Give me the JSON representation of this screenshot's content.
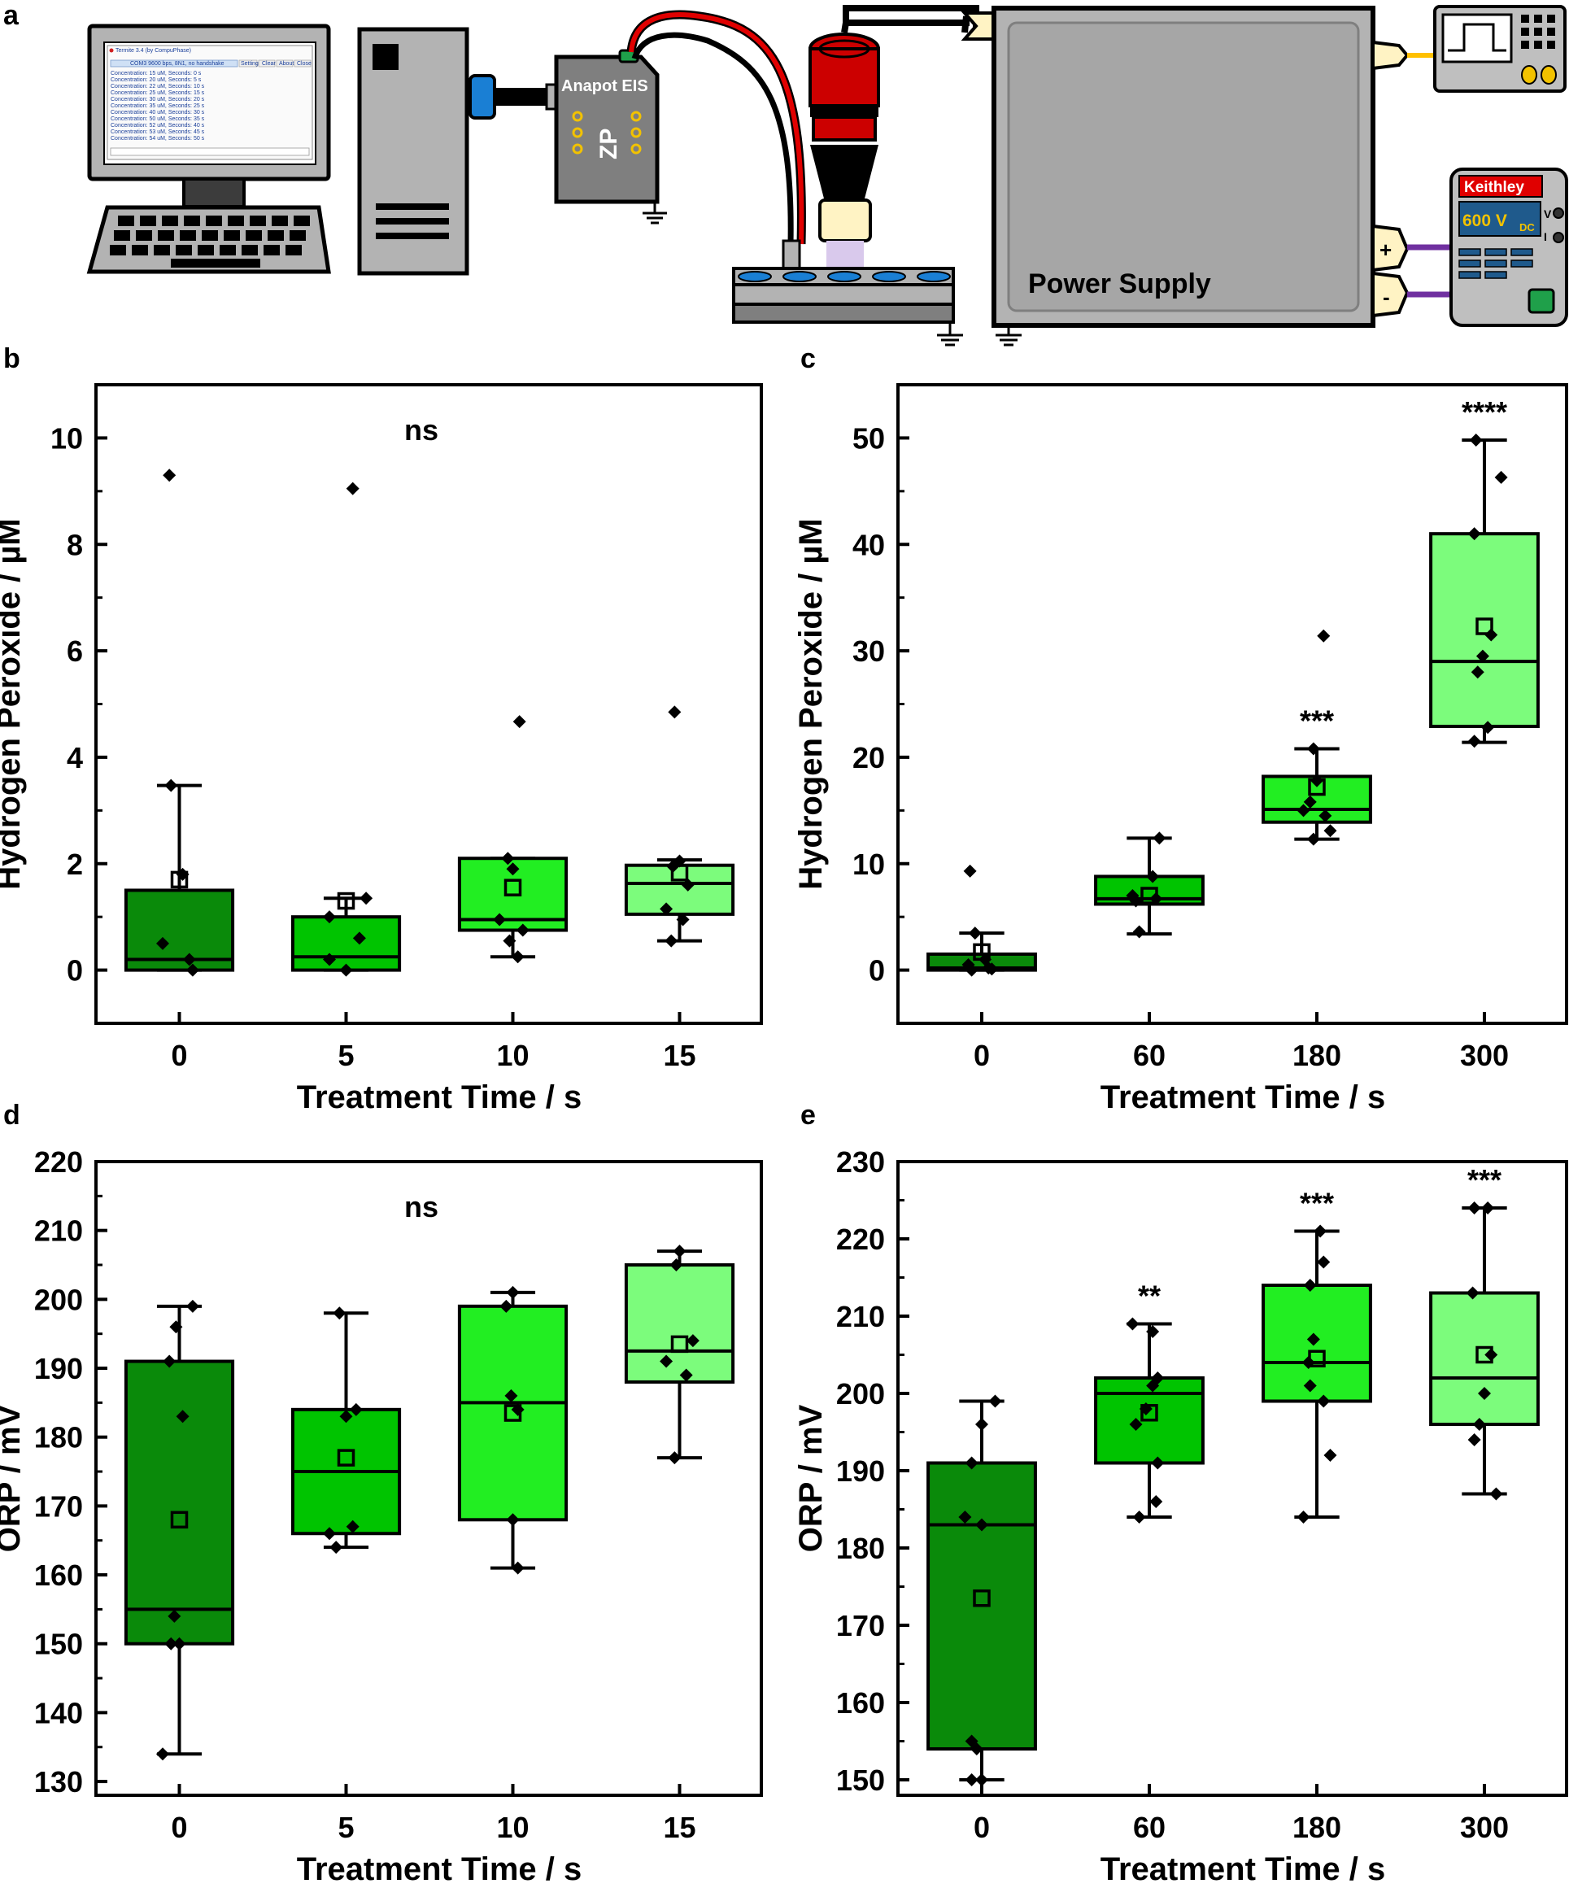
{
  "panel_labels": [
    "a",
    "b",
    "c",
    "d",
    "e"
  ],
  "schematic": {
    "software_window_title": "Termite 3.4 (by CompuPhase)",
    "software_status": "COM3 9600 bps, 8N1, no handshake",
    "software_buttons": [
      "Settings",
      "Clear",
      "About",
      "Close"
    ],
    "software_lines": [
      "Concentration: 15 uM, Seconds: 0 s",
      "Concentration: 20 uM, Seconds: 5 s",
      "Concentration: 22 uM, Seconds: 10 s",
      "Concentration: 25 uM, Seconds: 15 s",
      "Concentration: 30 uM, Seconds: 20 s",
      "Concentration: 35 uM, Seconds: 25 s",
      "Concentration: 40 uM, Seconds: 30 s",
      "Concentration: 50 uM, Seconds: 35 s",
      "Concentration: 52 uM, Seconds: 40 s",
      "Concentration: 53 uM, Seconds: 45 s",
      "Concentration: 54 uM, Seconds: 50 s"
    ],
    "potentiostat_label": "Anapot EIS",
    "potentiostat_logo": "ZP",
    "power_supply_label": "Power Supply",
    "meter_brand": "Keithley",
    "meter_reading": "600 V",
    "meter_reading_sub": "DC",
    "meter_v": "V",
    "meter_i": "I",
    "plus_sign": "+",
    "minus_sign": "-",
    "colors": {
      "case": "#b3b3b3",
      "cable_red": "#e00000",
      "cable_blue": "#1a7fd4",
      "meter_header": "#e00000",
      "meter_display": "#1f5a8c",
      "meter_text": "#f2c200",
      "wire_purple": "#7030a0",
      "wire_yellow": "#ffc000",
      "sample": "#d9c9ec"
    }
  },
  "chart_data": [
    {
      "panel": "b",
      "type": "box",
      "xlabel": "Treatment Time / s",
      "ylabel": "Hydrogen Peroxide / µM",
      "ylim": [
        -1,
        11
      ],
      "yticks": [
        0,
        2,
        4,
        6,
        8,
        10
      ],
      "xlim": [
        -0.5,
        3.5
      ],
      "categories": [
        "0",
        "5",
        "10",
        "15"
      ],
      "annotation": "ns",
      "boxes": [
        {
          "q1": 0.0,
          "median": 0.2,
          "q3": 1.5,
          "whisker_low": 0.0,
          "whisker_high": 3.47,
          "mean": 1.7,
          "color": "#0a8a0a",
          "points": [
            [
              0.08,
              0.0
            ],
            [
              -0.1,
              0.5
            ],
            [
              0.06,
              0.2
            ],
            [
              -0.05,
              3.47
            ],
            [
              -0.06,
              9.3
            ],
            [
              0.02,
              1.8
            ]
          ]
        },
        {
          "q1": 0.0,
          "median": 0.25,
          "q3": 1.0,
          "whisker_low": 0.0,
          "whisker_high": 1.35,
          "mean": 1.3,
          "color": "#00c400",
          "points": [
            [
              0.0,
              0.0
            ],
            [
              -0.1,
              0.2
            ],
            [
              0.08,
              0.6
            ],
            [
              -0.1,
              1.0
            ],
            [
              0.12,
              1.35
            ],
            [
              0.04,
              9.05
            ]
          ]
        },
        {
          "q1": 0.75,
          "median": 0.95,
          "q3": 2.1,
          "whisker_low": 0.25,
          "whisker_high": 2.1,
          "mean": 1.55,
          "color": "#22ee22",
          "points": [
            [
              -0.08,
              0.95
            ],
            [
              0.03,
              0.25
            ],
            [
              -0.02,
              0.55
            ],
            [
              0.06,
              0.75
            ],
            [
              0.0,
              1.9
            ],
            [
              -0.03,
              2.1
            ],
            [
              0.04,
              4.67
            ]
          ]
        },
        {
          "q1": 1.05,
          "median": 1.63,
          "q3": 1.97,
          "whisker_low": 0.55,
          "whisker_high": 2.07,
          "mean": 1.83,
          "color": "#7cfc7c",
          "points": [
            [
              -0.05,
              0.55
            ],
            [
              0.02,
              0.95
            ],
            [
              -0.08,
              1.15
            ],
            [
              0.05,
              1.6
            ],
            [
              -0.04,
              1.95
            ],
            [
              0.0,
              2.05
            ],
            [
              -0.03,
              4.85
            ]
          ]
        }
      ]
    },
    {
      "panel": "c",
      "type": "box",
      "xlabel": "Treatment Time / s",
      "ylabel": "Hydrogen Peroxide / µM",
      "ylim": [
        -5,
        55
      ],
      "yticks": [
        0,
        10,
        20,
        30,
        40,
        50
      ],
      "xlim": [
        -0.5,
        3.5
      ],
      "categories": [
        "0",
        "60",
        "180",
        "300"
      ],
      "annotations": [
        "",
        "",
        "***",
        "****"
      ],
      "boxes": [
        {
          "q1": 0.0,
          "median": 0.2,
          "q3": 1.5,
          "whisker_low": 0.0,
          "whisker_high": 3.47,
          "mean": 1.7,
          "color": "#0a8a0a",
          "points": [
            [
              -0.06,
              0.0
            ],
            [
              0.04,
              0.2
            ],
            [
              -0.08,
              0.5
            ],
            [
              0.02,
              1.0
            ],
            [
              -0.04,
              3.47
            ],
            [
              0.06,
              0.1
            ],
            [
              -0.07,
              9.3
            ]
          ]
        },
        {
          "q1": 6.2,
          "median": 6.7,
          "q3": 8.8,
          "whisker_low": 3.4,
          "whisker_high": 12.4,
          "mean": 7.0,
          "color": "#00c400",
          "points": [
            [
              -0.06,
              3.6
            ],
            [
              -0.08,
              6.5
            ],
            [
              0.04,
              6.7
            ],
            [
              0.02,
              8.8
            ],
            [
              0.06,
              12.4
            ],
            [
              -0.1,
              7.0
            ]
          ]
        },
        {
          "q1": 13.9,
          "median": 15.1,
          "q3": 18.2,
          "whisker_low": 12.3,
          "whisker_high": 20.8,
          "mean": 17.2,
          "color": "#22ee22",
          "points": [
            [
              -0.02,
              12.3
            ],
            [
              0.08,
              13.1
            ],
            [
              -0.08,
              15.0
            ],
            [
              0.05,
              14.5
            ],
            [
              -0.04,
              15.8
            ],
            [
              0.0,
              17.8
            ],
            [
              -0.02,
              20.8
            ],
            [
              0.04,
              31.4
            ]
          ]
        },
        {
          "q1": 22.9,
          "median": 29.0,
          "q3": 41.0,
          "whisker_low": 21.4,
          "whisker_high": 49.8,
          "mean": 32.3,
          "color": "#7cfc7c",
          "points": [
            [
              -0.06,
              21.5
            ],
            [
              0.02,
              22.8
            ],
            [
              -0.04,
              28.0
            ],
            [
              -0.01,
              29.5
            ],
            [
              0.04,
              31.5
            ],
            [
              -0.06,
              41.0
            ],
            [
              0.1,
              46.3
            ],
            [
              -0.05,
              49.8
            ]
          ]
        }
      ]
    },
    {
      "panel": "d",
      "type": "box",
      "xlabel": "Treatment Time / s",
      "ylabel": "ORP / mV",
      "ylim": [
        128,
        220
      ],
      "yticks": [
        130,
        140,
        150,
        160,
        170,
        180,
        190,
        200,
        210,
        220
      ],
      "xlim": [
        -0.5,
        3.5
      ],
      "categories": [
        "0",
        "5",
        "10",
        "15"
      ],
      "annotation": "ns",
      "boxes": [
        {
          "q1": 150,
          "median": 155,
          "q3": 191,
          "whisker_low": 134,
          "whisker_high": 199,
          "mean": 168,
          "color": "#0a8a0a",
          "points": [
            [
              -0.1,
              134
            ],
            [
              -0.05,
              150
            ],
            [
              0.0,
              150
            ],
            [
              -0.03,
              154
            ],
            [
              -0.06,
              191
            ],
            [
              0.02,
              183
            ],
            [
              -0.02,
              196
            ],
            [
              0.08,
              199
            ]
          ]
        },
        {
          "q1": 166,
          "median": 175,
          "q3": 184,
          "whisker_low": 164,
          "whisker_high": 198,
          "mean": 177,
          "color": "#00c400",
          "points": [
            [
              -0.06,
              164
            ],
            [
              -0.1,
              166
            ],
            [
              0.04,
              167
            ],
            [
              0.0,
              183
            ],
            [
              0.06,
              184
            ],
            [
              -0.04,
              198
            ]
          ]
        },
        {
          "q1": 168,
          "median": 185,
          "q3": 199,
          "whisker_low": 161,
          "whisker_high": 201,
          "mean": 183.5,
          "color": "#22ee22",
          "points": [
            [
              0.03,
              161
            ],
            [
              0.0,
              168
            ],
            [
              0.03,
              184
            ],
            [
              -0.01,
              186
            ],
            [
              -0.04,
              199
            ],
            [
              0.0,
              201
            ]
          ]
        },
        {
          "q1": 188,
          "median": 192.5,
          "q3": 205,
          "whisker_low": 177,
          "whisker_high": 207,
          "mean": 193.5,
          "color": "#7cfc7c",
          "points": [
            [
              -0.03,
              177
            ],
            [
              0.04,
              189
            ],
            [
              -0.08,
              191
            ],
            [
              0.08,
              194
            ],
            [
              -0.02,
              205
            ],
            [
              0.0,
              207
            ]
          ]
        }
      ]
    },
    {
      "panel": "e",
      "type": "box",
      "xlabel": "Treatment Time / s",
      "ylabel": "ORP / mV",
      "ylim": [
        148,
        230
      ],
      "yticks": [
        150,
        160,
        170,
        180,
        190,
        200,
        210,
        220,
        230
      ],
      "xlim": [
        -0.5,
        3.5
      ],
      "categories": [
        "0",
        "60",
        "180",
        "300"
      ],
      "annotations": [
        "",
        "**",
        "***",
        "***"
      ],
      "boxes": [
        {
          "q1": 154,
          "median": 183,
          "q3": 191,
          "whisker_low": 150,
          "whisker_high": 199,
          "mean": 173.5,
          "color": "#0a8a0a",
          "points": [
            [
              -0.06,
              150
            ],
            [
              0.0,
              150
            ],
            [
              -0.06,
              155
            ],
            [
              -0.03,
              154
            ],
            [
              0.0,
              183
            ],
            [
              -0.1,
              184
            ],
            [
              -0.06,
              191
            ],
            [
              0.0,
              196
            ],
            [
              0.08,
              199
            ]
          ]
        },
        {
          "q1": 191,
          "median": 200,
          "q3": 202,
          "whisker_low": 184,
          "whisker_high": 209,
          "mean": 197.5,
          "color": "#00c400",
          "points": [
            [
              -0.06,
              184
            ],
            [
              0.04,
              186
            ],
            [
              0.05,
              191
            ],
            [
              -0.08,
              196
            ],
            [
              -0.02,
              198
            ],
            [
              0.02,
              201
            ],
            [
              0.05,
              202
            ],
            [
              -0.1,
              209
            ],
            [
              0.02,
              208
            ]
          ]
        },
        {
          "q1": 199,
          "median": 204,
          "q3": 214,
          "whisker_low": 184,
          "whisker_high": 221,
          "mean": 204.5,
          "color": "#22ee22",
          "points": [
            [
              -0.08,
              184
            ],
            [
              0.08,
              192
            ],
            [
              0.04,
              199
            ],
            [
              -0.04,
              201
            ],
            [
              -0.05,
              204
            ],
            [
              -0.02,
              207
            ],
            [
              -0.04,
              214
            ],
            [
              0.04,
              217
            ],
            [
              0.02,
              221
            ]
          ]
        },
        {
          "q1": 196,
          "median": 202,
          "q3": 213,
          "whisker_low": 187,
          "whisker_high": 224,
          "mean": 205,
          "color": "#7cfc7c",
          "points": [
            [
              0.07,
              187
            ],
            [
              -0.06,
              194
            ],
            [
              -0.03,
              196
            ],
            [
              0.0,
              200
            ],
            [
              0.04,
              205
            ],
            [
              -0.07,
              213
            ],
            [
              -0.06,
              224
            ],
            [
              0.02,
              224
            ]
          ]
        }
      ]
    }
  ]
}
